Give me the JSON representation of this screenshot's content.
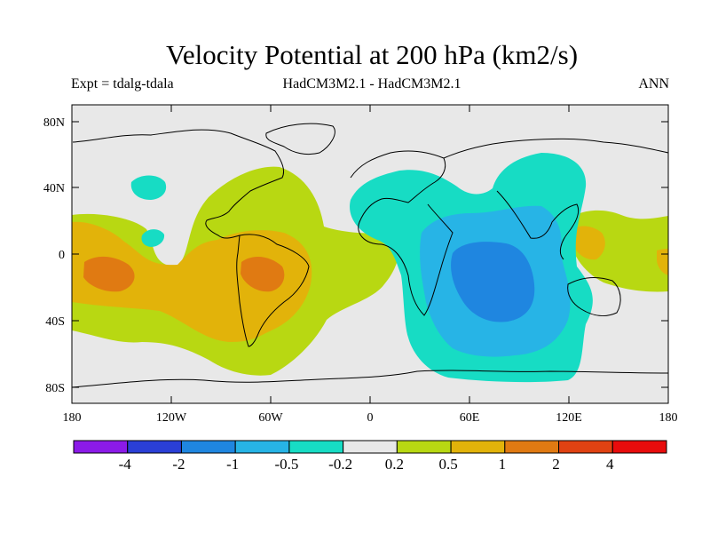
{
  "title": "Velocity Potential at 200 hPa (km2/s)",
  "subtitle_left": "Expt = tdalg-tdala",
  "subtitle_center": "HadCM3M2.1 - HadCM3M2.1",
  "subtitle_right": "ANN",
  "lat_ticks": [
    "80N",
    "40N",
    "0",
    "40S",
    "80S"
  ],
  "lon_ticks": [
    "180",
    "120W",
    "60W",
    "0",
    "60E",
    "120E",
    "180"
  ],
  "colorbar": {
    "colors": [
      "#8b1ae8",
      "#2a3fd6",
      "#1f86e0",
      "#27b4e6",
      "#17dcc4",
      "#e8e8e8",
      "#b8d812",
      "#e2b30a",
      "#e07a12",
      "#e04212",
      "#e80c0c"
    ],
    "labels": [
      "-4",
      "-2",
      "-1",
      "-0.5",
      "-0.2",
      "0.2",
      "0.5",
      "1",
      "2",
      "4"
    ]
  },
  "palette": {
    "background": "#e8e8e8",
    "coast": "#000000"
  }
}
